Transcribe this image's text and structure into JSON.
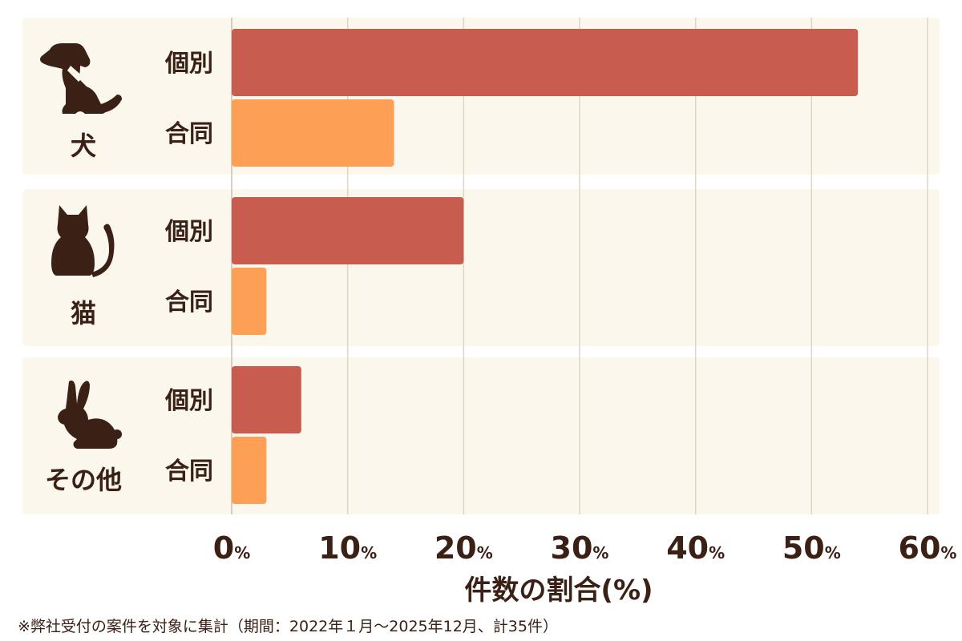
{
  "chart_data": {
    "type": "bar",
    "orientation": "horizontal",
    "xlabel": "件数の割合(%)",
    "xlim": [
      0,
      60
    ],
    "ticks": [
      0,
      10,
      20,
      30,
      40,
      50,
      60
    ],
    "tick_unit": "%",
    "grid": true,
    "groups": [
      {
        "name": "犬",
        "icon": "dog-icon",
        "bars": [
          {
            "label": "個別",
            "value": 54,
            "color": "#c85c4e"
          },
          {
            "label": "合同",
            "value": 14,
            "color": "#fd9f55"
          }
        ]
      },
      {
        "name": "猫",
        "icon": "cat-icon",
        "bars": [
          {
            "label": "個別",
            "value": 20,
            "color": "#c85c4e"
          },
          {
            "label": "合同",
            "value": 3,
            "color": "#fd9f55"
          }
        ]
      },
      {
        "name": "その他",
        "icon": "rabbit-icon",
        "bars": [
          {
            "label": "個別",
            "value": 6,
            "color": "#c85c4e"
          },
          {
            "label": "合同",
            "value": 3,
            "color": "#fd9f55"
          }
        ]
      }
    ],
    "footnote": "※弊社受付の案件を対象に集計（期間：2022年１月～2025年12月、計35件）"
  },
  "colors": {
    "band": "#fcf7ec",
    "text": "#3b2016",
    "individual": "#c85c4e",
    "joint": "#fd9f55"
  }
}
